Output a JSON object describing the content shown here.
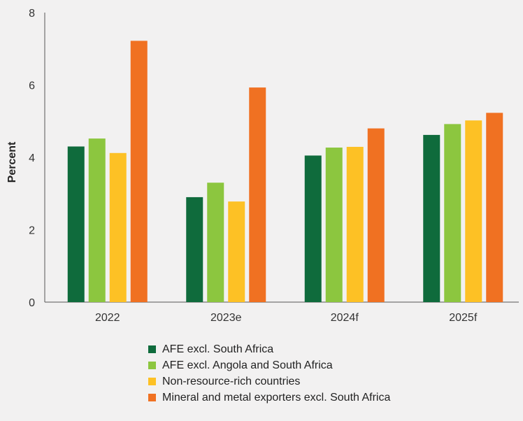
{
  "chart_data": {
    "type": "bar",
    "categories": [
      "2022",
      "2023e",
      "2024f",
      "2025f"
    ],
    "series": [
      {
        "name": "AFE excl. South Africa",
        "color": "#0f6b3c",
        "values": [
          4.3,
          2.9,
          4.05,
          4.62
        ]
      },
      {
        "name": "AFE excl. Angola and South Africa",
        "color": "#8cc63f",
        "values": [
          4.52,
          3.3,
          4.27,
          4.92
        ]
      },
      {
        "name": "Non-resource-rich countries",
        "color": "#fdc125",
        "values": [
          4.12,
          2.78,
          4.29,
          5.02
        ]
      },
      {
        "name": "Mineral and metal exporters excl. South Africa",
        "color": "#f07122",
        "values": [
          7.22,
          5.93,
          4.8,
          5.23
        ]
      }
    ],
    "ylabel": "Percent",
    "ylim": [
      0,
      8
    ],
    "yticks": [
      "0",
      "2",
      "4",
      "6",
      "8"
    ],
    "grid": false,
    "legend_position": "bottom"
  }
}
